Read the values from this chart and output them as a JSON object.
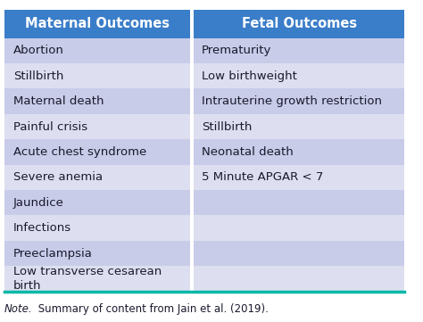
{
  "header": [
    "Maternal Outcomes",
    "Fetal Outcomes"
  ],
  "maternal_rows": [
    "Abortion",
    "Stillbirth",
    "Maternal death",
    "Painful crisis",
    "Acute chest syndrome",
    "Severe anemia",
    "Jaundice",
    "Infections",
    "Preeclampsia",
    "Low transverse cesarean\nbirth"
  ],
  "fetal_rows": [
    "Prematurity",
    "Low birthweight",
    "Intrauterine growth restriction",
    "Stillbirth",
    "Neonatal death",
    "5 Minute APGAR < 7",
    "",
    "",
    "",
    ""
  ],
  "header_bg": "#3a7dc9",
  "header_text_color": "#ffffff",
  "row_colors_even": "#c8cce8",
  "row_colors_odd": "#dddff0",
  "text_color": "#1a1a2e",
  "bottom_border_color": "#00b8a8",
  "note_italic": "Note.",
  "note_rest": " Summary of content from Jain et al. (2019).",
  "col_split": 0.47,
  "figsize": [
    4.74,
    3.61
  ],
  "dpi": 100,
  "header_fontsize": 10.5,
  "cell_fontsize": 9.5,
  "note_fontsize": 8.5
}
